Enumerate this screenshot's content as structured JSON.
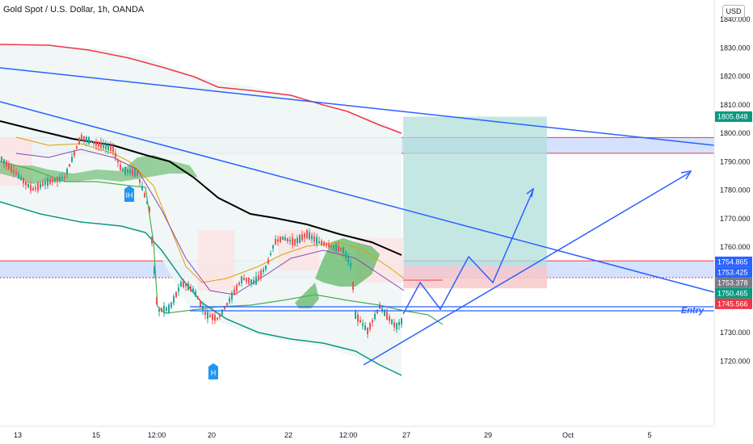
{
  "header": {
    "title": "Gold Spot / U.S. Dollar, 1h, OANDA",
    "currency": "USD"
  },
  "colors": {
    "zone_fill": "#c7d8ff",
    "zone_border": "#f23645",
    "target_fill": "#b2dfdb",
    "stop_fill": "#f8c5c8",
    "trend_line": "#2962ff",
    "ma_red": "#f23645",
    "ma_black": "#000000",
    "envelope_green": "#089981",
    "cloud_green": "#4caf50",
    "cloud_red": "#fce4e5",
    "candle_up": "#26a69a",
    "candle_down": "#ef5350",
    "label_marker": "#2196f3"
  },
  "chart_data": {
    "type": "candlestick",
    "y_axis": {
      "ticks": [
        1840,
        1830,
        1820,
        1810,
        1800,
        1790,
        1780,
        1770,
        1760,
        1750,
        1740,
        1730,
        1720
      ],
      "tick_labels": [
        "1840.000",
        "1830.000",
        "1820.000",
        "1810.000",
        "1800.000",
        "1790.000",
        "1780.000",
        "1770.000",
        "1760.000",
        "1750.000",
        "1740.000",
        "1730.000",
        "1720.000"
      ],
      "range": [
        1719,
        1843
      ]
    },
    "x_axis": {
      "tick_labels": [
        "13",
        "15",
        "12:00",
        "20",
        "22",
        "12:00",
        "27",
        "29",
        "Oct",
        "5"
      ]
    },
    "price_tags": [
      {
        "value": 1805.848,
        "label": "1805.848",
        "color": "#089981"
      },
      {
        "value": 1754.865,
        "label": "1754.865",
        "color": "#2962ff"
      },
      {
        "value": 1753.425,
        "label": "1753.425",
        "color": "#2962ff"
      },
      {
        "value": 1753.378,
        "label": "1753.378",
        "color": "#787b86"
      },
      {
        "value": 1750.465,
        "label": "1750.465",
        "color": "#089981"
      },
      {
        "value": 1745.566,
        "label": "1745.566",
        "color": "#f23645"
      }
    ],
    "zones": [
      {
        "name": "upper-zone",
        "top": 1798.5,
        "bottom": 1793.0
      },
      {
        "name": "lower-zone",
        "top": 1755.2,
        "bottom": 1749.3
      }
    ],
    "position": {
      "entry": 1753.378,
      "target": 1805.848,
      "stop": 1745.566
    },
    "markers": [
      {
        "label": "IH"
      },
      {
        "label": "H"
      }
    ],
    "annotation": "Entry"
  }
}
